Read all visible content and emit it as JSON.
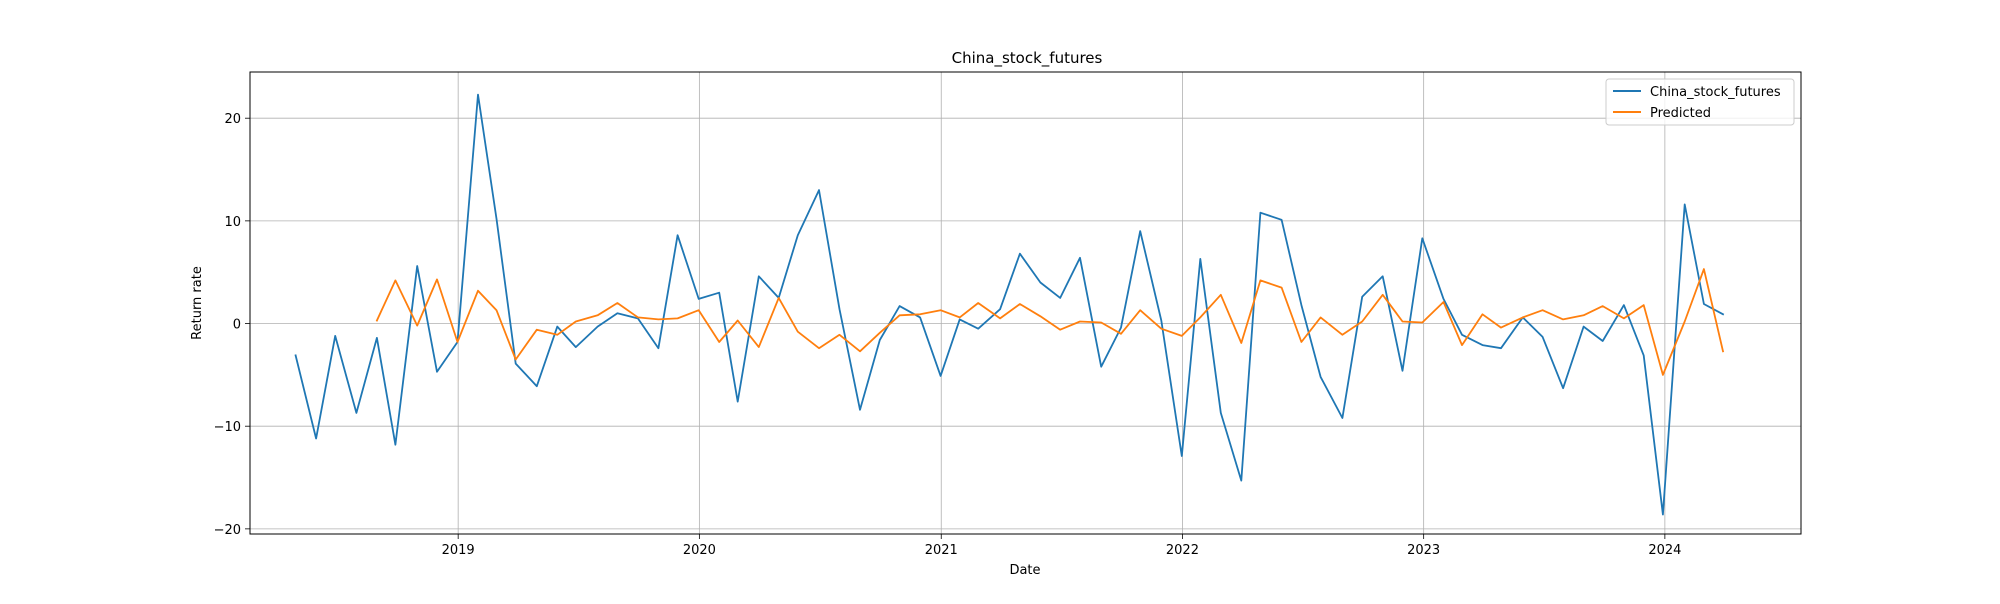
{
  "chart_data": {
    "type": "line",
    "title": "China_stock_futures",
    "xlabel": "Date",
    "ylabel": "Return rate",
    "x_tick_labels": [
      "2019",
      "2020",
      "2021",
      "2022",
      "2023",
      "2024"
    ],
    "y_tick_labels": [
      "−20",
      "−10",
      "0",
      "10",
      "20"
    ],
    "ylim": [
      -20.5,
      24.5
    ],
    "xlim": [
      "2018-02-20",
      "2024-07-25"
    ],
    "grid": true,
    "legend_position": "top-right",
    "series": [
      {
        "name": "China_stock_futures",
        "color": "#1f77b4",
        "points": [
          [
            "2018-04-30",
            -3.1
          ],
          [
            "2018-05-31",
            -11.2
          ],
          [
            "2018-06-29",
            -1.2
          ],
          [
            "2018-07-31",
            -8.7
          ],
          [
            "2018-08-31",
            -1.4
          ],
          [
            "2018-09-28",
            -11.8
          ],
          [
            "2018-10-31",
            5.6
          ],
          [
            "2018-11-30",
            -4.7
          ],
          [
            "2018-12-31",
            -1.8
          ],
          [
            "2019-01-31",
            22.3
          ],
          [
            "2019-02-28",
            10.2
          ],
          [
            "2019-03-29",
            -3.9
          ],
          [
            "2019-04-30",
            -6.1
          ],
          [
            "2019-05-31",
            -0.3
          ],
          [
            "2019-06-28",
            -2.3
          ],
          [
            "2019-07-31",
            -0.3
          ],
          [
            "2019-08-30",
            1.0
          ],
          [
            "2019-09-30",
            0.5
          ],
          [
            "2019-10-31",
            -2.4
          ],
          [
            "2019-11-29",
            8.6
          ],
          [
            "2019-12-31",
            2.4
          ],
          [
            "2020-01-31",
            3.0
          ],
          [
            "2020-02-28",
            -7.6
          ],
          [
            "2020-03-31",
            4.6
          ],
          [
            "2020-04-30",
            2.5
          ],
          [
            "2020-05-29",
            8.6
          ],
          [
            "2020-06-30",
            13.0
          ],
          [
            "2020-07-31",
            1.4
          ],
          [
            "2020-08-31",
            -8.4
          ],
          [
            "2020-09-30",
            -1.6
          ],
          [
            "2020-10-30",
            1.7
          ],
          [
            "2020-11-30",
            0.6
          ],
          [
            "2020-12-31",
            -5.1
          ],
          [
            "2021-01-29",
            0.4
          ],
          [
            "2021-02-26",
            -0.5
          ],
          [
            "2021-03-31",
            1.4
          ],
          [
            "2021-04-30",
            6.8
          ],
          [
            "2021-05-31",
            4.0
          ],
          [
            "2021-06-30",
            2.5
          ],
          [
            "2021-07-30",
            6.4
          ],
          [
            "2021-08-31",
            -4.2
          ],
          [
            "2021-09-30",
            -0.4
          ],
          [
            "2021-10-29",
            9.0
          ],
          [
            "2021-11-30",
            0.3
          ],
          [
            "2021-12-31",
            -12.9
          ],
          [
            "2022-01-28",
            6.3
          ],
          [
            "2022-02-28",
            -8.7
          ],
          [
            "2022-03-31",
            -15.3
          ],
          [
            "2022-04-29",
            10.8
          ],
          [
            "2022-05-31",
            10.1
          ],
          [
            "2022-06-30",
            1.8
          ],
          [
            "2022-07-29",
            -5.2
          ],
          [
            "2022-08-31",
            -9.2
          ],
          [
            "2022-09-30",
            2.6
          ],
          [
            "2022-10-31",
            4.6
          ],
          [
            "2022-11-30",
            -4.6
          ],
          [
            "2022-12-30",
            8.3
          ],
          [
            "2023-01-31",
            2.4
          ],
          [
            "2023-02-28",
            -1.1
          ],
          [
            "2023-03-31",
            -2.1
          ],
          [
            "2023-04-28",
            -2.4
          ],
          [
            "2023-05-31",
            0.6
          ],
          [
            "2023-06-30",
            -1.3
          ],
          [
            "2023-07-31",
            -6.3
          ],
          [
            "2023-08-31",
            -0.3
          ],
          [
            "2023-09-29",
            -1.7
          ],
          [
            "2023-10-31",
            1.8
          ],
          [
            "2023-11-30",
            -3.1
          ],
          [
            "2023-12-29",
            -18.6
          ],
          [
            "2024-01-31",
            11.6
          ],
          [
            "2024-02-29",
            1.9
          ],
          [
            "2024-03-29",
            0.9
          ]
        ]
      },
      {
        "name": "Predicted",
        "color": "#ff7f0e",
        "points": [
          [
            "2018-08-31",
            0.3
          ],
          [
            "2018-09-28",
            4.2
          ],
          [
            "2018-10-31",
            -0.2
          ],
          [
            "2018-11-30",
            4.3
          ],
          [
            "2018-12-31",
            -1.8
          ],
          [
            "2019-01-31",
            3.2
          ],
          [
            "2019-02-28",
            1.3
          ],
          [
            "2019-03-29",
            -3.5
          ],
          [
            "2019-04-30",
            -0.6
          ],
          [
            "2019-05-31",
            -1.1
          ],
          [
            "2019-06-28",
            0.2
          ],
          [
            "2019-07-31",
            0.8
          ],
          [
            "2019-08-30",
            2.0
          ],
          [
            "2019-09-30",
            0.6
          ],
          [
            "2019-10-31",
            0.4
          ],
          [
            "2019-11-29",
            0.5
          ],
          [
            "2019-12-31",
            1.3
          ],
          [
            "2020-01-31",
            -1.8
          ],
          [
            "2020-02-28",
            0.3
          ],
          [
            "2020-03-31",
            -2.3
          ],
          [
            "2020-04-30",
            2.5
          ],
          [
            "2020-05-29",
            -0.8
          ],
          [
            "2020-06-30",
            -2.4
          ],
          [
            "2020-07-31",
            -1.1
          ],
          [
            "2020-08-31",
            -2.7
          ],
          [
            "2020-09-30",
            -0.9
          ],
          [
            "2020-10-30",
            0.8
          ],
          [
            "2020-11-30",
            0.9
          ],
          [
            "2020-12-31",
            1.3
          ],
          [
            "2021-01-29",
            0.6
          ],
          [
            "2021-02-26",
            2.0
          ],
          [
            "2021-03-31",
            0.5
          ],
          [
            "2021-04-30",
            1.9
          ],
          [
            "2021-05-31",
            0.7
          ],
          [
            "2021-06-30",
            -0.6
          ],
          [
            "2021-07-30",
            0.2
          ],
          [
            "2021-08-31",
            0.1
          ],
          [
            "2021-09-30",
            -1.0
          ],
          [
            "2021-10-29",
            1.3
          ],
          [
            "2021-11-30",
            -0.5
          ],
          [
            "2021-12-31",
            -1.2
          ],
          [
            "2022-01-28",
            0.6
          ],
          [
            "2022-02-28",
            2.8
          ],
          [
            "2022-03-31",
            -1.9
          ],
          [
            "2022-04-29",
            4.2
          ],
          [
            "2022-05-31",
            3.5
          ],
          [
            "2022-06-30",
            -1.8
          ],
          [
            "2022-07-29",
            0.6
          ],
          [
            "2022-08-31",
            -1.1
          ],
          [
            "2022-09-30",
            0.2
          ],
          [
            "2022-10-31",
            2.8
          ],
          [
            "2022-11-30",
            0.2
          ],
          [
            "2022-12-30",
            0.1
          ],
          [
            "2023-01-31",
            2.1
          ],
          [
            "2023-02-28",
            -2.1
          ],
          [
            "2023-03-31",
            0.9
          ],
          [
            "2023-04-28",
            -0.4
          ],
          [
            "2023-05-31",
            0.6
          ],
          [
            "2023-06-30",
            1.3
          ],
          [
            "2023-07-31",
            0.4
          ],
          [
            "2023-08-31",
            0.8
          ],
          [
            "2023-09-29",
            1.7
          ],
          [
            "2023-10-31",
            0.5
          ],
          [
            "2023-11-30",
            1.8
          ],
          [
            "2023-12-29",
            -5.0
          ],
          [
            "2024-01-31",
            0.2
          ],
          [
            "2024-02-29",
            5.3
          ],
          [
            "2024-03-29",
            -2.7
          ]
        ]
      }
    ]
  }
}
